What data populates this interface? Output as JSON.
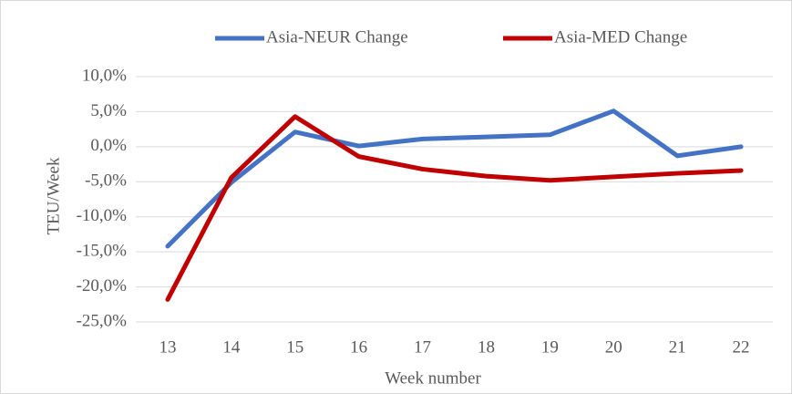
{
  "chart_data": {
    "type": "line",
    "categories": [
      "13",
      "14",
      "15",
      "16",
      "17",
      "18",
      "19",
      "20",
      "21",
      "22"
    ],
    "series": [
      {
        "name": "Asia-NEUR Change",
        "color": "#4472c4",
        "values": [
          -14.2,
          -5.1,
          2.1,
          0.1,
          1.1,
          1.4,
          1.7,
          5.1,
          -1.3,
          0.0
        ]
      },
      {
        "name": "Asia-MED Change",
        "color": "#c00000",
        "values": [
          -21.8,
          -4.4,
          4.3,
          -1.4,
          -3.2,
          -4.2,
          -4.8,
          -4.3,
          -3.8,
          -3.4
        ]
      }
    ],
    "ylim": [
      -25,
      10
    ],
    "yticks": [
      {
        "value": -25,
        "label": "-25,0%"
      },
      {
        "value": -20,
        "label": "-20,0%"
      },
      {
        "value": -15,
        "label": "-15,0%"
      },
      {
        "value": -10,
        "label": "-10,0%"
      },
      {
        "value": -5,
        "label": "-5,0%"
      },
      {
        "value": 0,
        "label": "0,0%"
      },
      {
        "value": 5,
        "label": "5,0%"
      },
      {
        "value": 10,
        "label": "10,0%"
      }
    ],
    "y_label": "TEU/Week",
    "x_label": "Week number",
    "grid": true,
    "legend": "top"
  }
}
